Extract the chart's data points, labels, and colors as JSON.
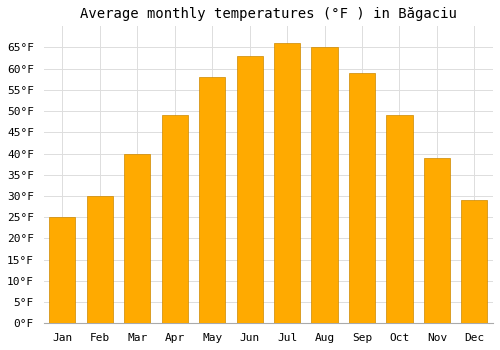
{
  "title": "Average monthly temperatures (°F ) in Băgaciu",
  "months": [
    "Jan",
    "Feb",
    "Mar",
    "Apr",
    "May",
    "Jun",
    "Jul",
    "Aug",
    "Sep",
    "Oct",
    "Nov",
    "Dec"
  ],
  "values": [
    25,
    30,
    40,
    49,
    58,
    63,
    66,
    65,
    59,
    49,
    39,
    29
  ],
  "bar_color": "#FFAA00",
  "bar_edge_color": "#CC8800",
  "background_color": "#ffffff",
  "grid_color": "#dddddd",
  "ylim": [
    0,
    70
  ],
  "yticks": [
    0,
    5,
    10,
    15,
    20,
    25,
    30,
    35,
    40,
    45,
    50,
    55,
    60,
    65
  ],
  "title_fontsize": 10,
  "tick_fontsize": 8,
  "font_family": "monospace"
}
